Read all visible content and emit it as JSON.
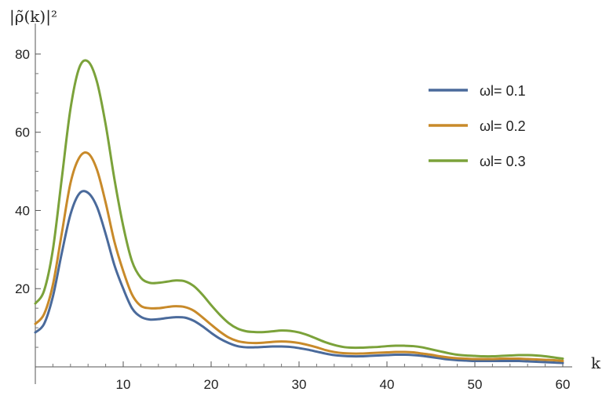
{
  "chart_data": {
    "type": "line",
    "title": "",
    "xlabel": "k",
    "ylabel": "|ρ̃(k)|²",
    "xlim": [
      0,
      60
    ],
    "ylim": [
      0,
      85
    ],
    "xticks": [
      10,
      20,
      30,
      40,
      50,
      60
    ],
    "yticks": [
      20,
      40,
      60,
      80
    ],
    "grid": false,
    "legend_position": "top-right",
    "x": [
      0,
      1,
      2,
      3,
      4,
      5,
      6,
      7,
      8,
      9,
      10,
      11,
      12,
      13,
      14,
      15,
      16,
      17,
      18,
      19,
      20,
      21,
      22,
      23,
      24,
      25,
      26,
      27,
      28,
      29,
      30,
      31,
      32,
      33,
      34,
      35,
      36,
      37,
      38,
      39,
      40,
      41,
      42,
      43,
      44,
      45,
      46,
      47,
      48,
      49,
      50,
      51,
      52,
      53,
      54,
      55,
      56,
      57,
      58,
      59,
      60
    ],
    "series": [
      {
        "name": "ωl= 0.1",
        "color": "#4a6a9b",
        "values": [
          8.8,
          11,
          18,
          29,
          39,
          44.3,
          44.5,
          41,
          34,
          26,
          20,
          15,
          12.8,
          12.1,
          12.2,
          12.5,
          12.7,
          12.6,
          11.8,
          10.4,
          8.7,
          7.2,
          6.1,
          5.3,
          5,
          5,
          5.1,
          5.2,
          5.2,
          5.1,
          4.8,
          4.4,
          3.9,
          3.4,
          3,
          2.8,
          2.7,
          2.7,
          2.8,
          2.9,
          3,
          3.1,
          3.1,
          3,
          2.8,
          2.5,
          2.2,
          1.9,
          1.7,
          1.6,
          1.5,
          1.5,
          1.5,
          1.5,
          1.5,
          1.5,
          1.4,
          1.3,
          1.2,
          1.1,
          1.0
        ]
      },
      {
        "name": "ωl= 0.2",
        "color": "#c88a2a",
        "values": [
          11,
          13.5,
          21,
          34,
          47,
          53.5,
          54.6,
          50.5,
          42,
          32,
          24.5,
          18.5,
          15.6,
          15,
          15,
          15.3,
          15.5,
          15.3,
          14.4,
          12.7,
          10.8,
          9,
          7.5,
          6.6,
          6.2,
          6.1,
          6.2,
          6.4,
          6.5,
          6.4,
          6.1,
          5.6,
          5,
          4.3,
          3.8,
          3.5,
          3.4,
          3.4,
          3.5,
          3.6,
          3.7,
          3.8,
          3.8,
          3.7,
          3.4,
          3.1,
          2.7,
          2.4,
          2.2,
          2.1,
          2,
          2,
          2,
          2.1,
          2.1,
          2.1,
          2.0,
          1.9,
          1.8,
          1.7,
          1.5
        ]
      },
      {
        "name": "ωl= 0.3",
        "color": "#7ba23a",
        "values": [
          16.2,
          19.5,
          30,
          48,
          66,
          76.5,
          78.1,
          73,
          62,
          48,
          36,
          27,
          22.8,
          21.5,
          21.5,
          21.8,
          22.1,
          21.9,
          20.7,
          18.5,
          15.8,
          13.3,
          11.2,
          9.8,
          9.1,
          8.9,
          8.9,
          9.1,
          9.3,
          9.2,
          8.8,
          8.1,
          7.2,
          6.3,
          5.6,
          5.1,
          4.9,
          4.9,
          5,
          5.1,
          5.3,
          5.4,
          5.4,
          5.3,
          5,
          4.5,
          4,
          3.5,
          3.1,
          2.9,
          2.8,
          2.7,
          2.7,
          2.8,
          2.9,
          3,
          3.0,
          2.9,
          2.7,
          2.4,
          2.1
        ]
      }
    ]
  }
}
